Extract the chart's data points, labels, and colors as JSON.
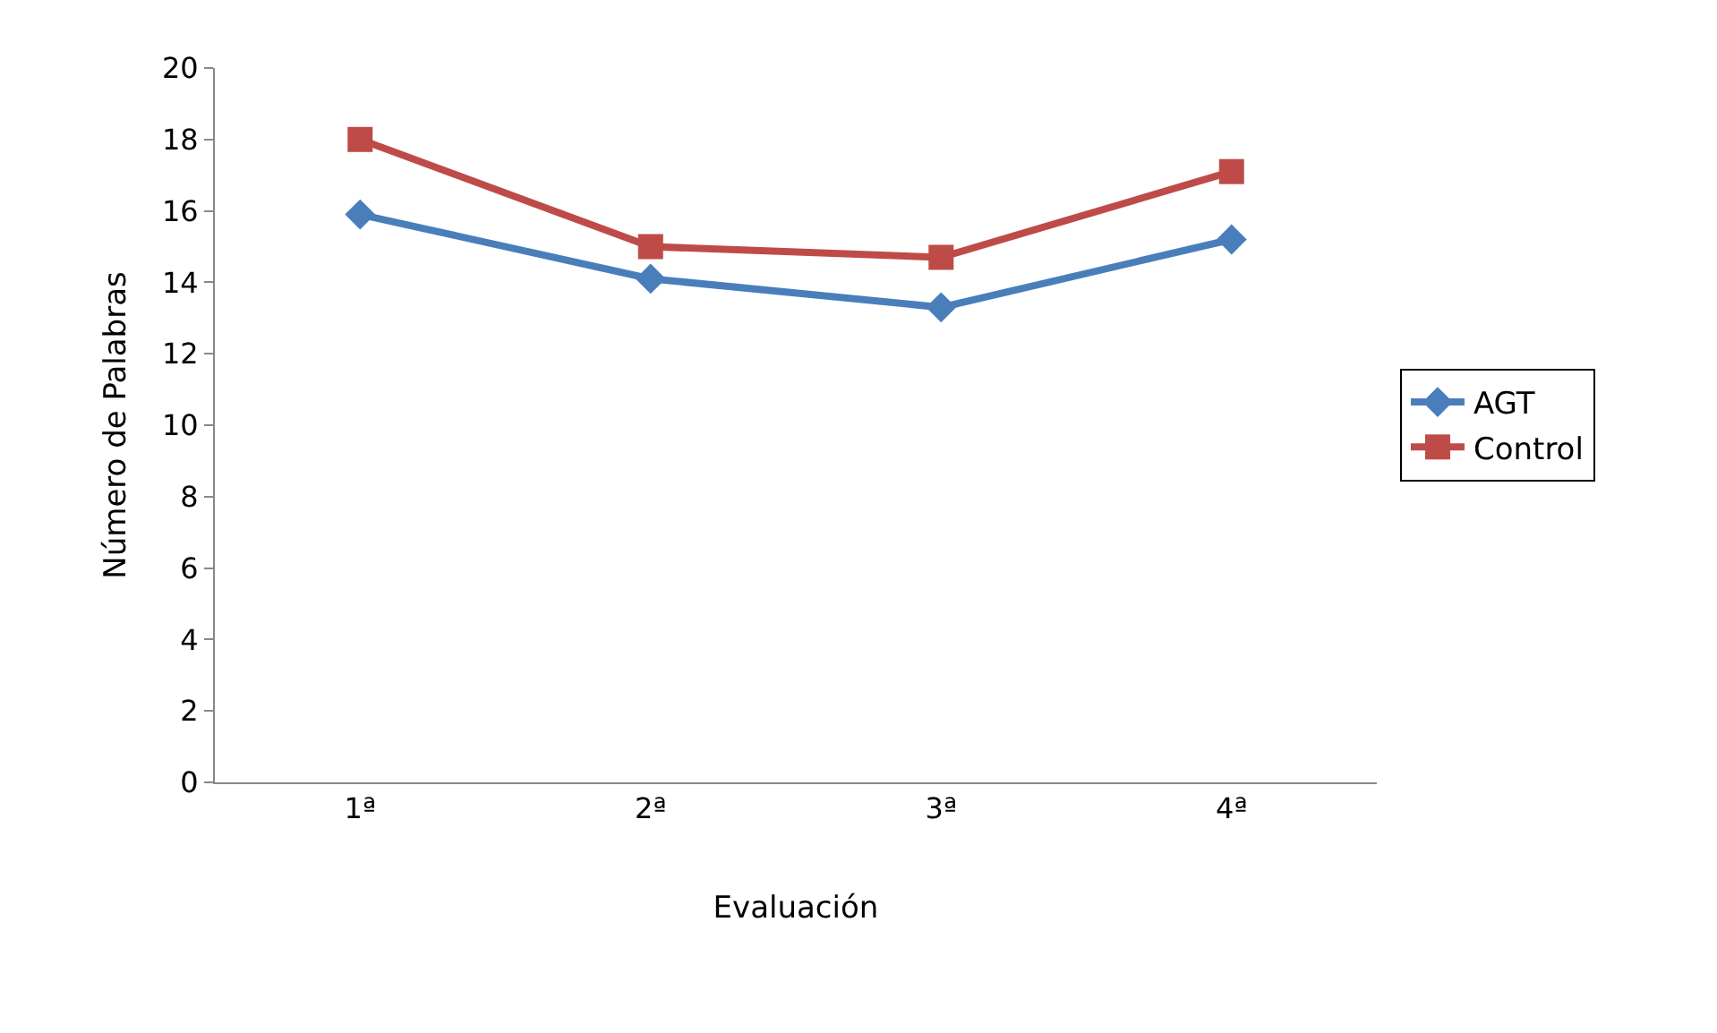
{
  "chart_data": {
    "type": "line",
    "xlabel": "Evaluación",
    "ylabel": "Número de Palabras",
    "categories": [
      "1ª",
      "2ª",
      "3ª",
      "4ª"
    ],
    "series": [
      {
        "name": "AGT",
        "color": "#4a7ebb",
        "marker": "diamond",
        "values": [
          15.9,
          14.1,
          13.3,
          15.2
        ]
      },
      {
        "name": "Control",
        "color": "#be4b48",
        "marker": "square",
        "values": [
          18.0,
          15.0,
          14.7,
          17.1
        ]
      }
    ],
    "ylim": [
      0,
      20
    ],
    "yticks": [
      0,
      2,
      4,
      6,
      8,
      10,
      12,
      14,
      16,
      18,
      20
    ],
    "grid": false,
    "legend": "right",
    "line_style": "solid"
  }
}
